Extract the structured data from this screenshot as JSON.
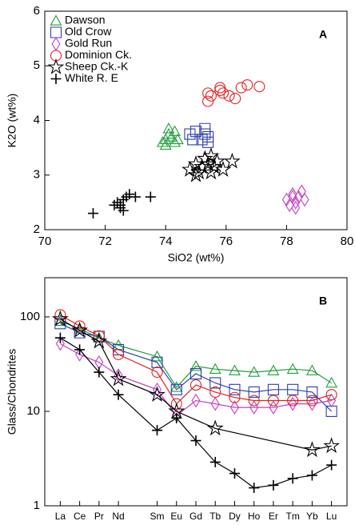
{
  "chart_data": [
    {
      "type": "scatter",
      "label": "A",
      "xlabel": "SiO2 (wt%)",
      "ylabel": "K2O (wt%)",
      "xlim": [
        70,
        80
      ],
      "xticks": [
        70,
        72,
        74,
        76,
        78,
        80
      ],
      "ylim": [
        2,
        6
      ],
      "yticks": [
        2,
        3,
        4,
        5,
        6
      ],
      "legend": "upper-left",
      "series": [
        {
          "name": "Dawson",
          "color": "#1f9e3c",
          "marker": "triangle",
          "x": [
            74.0,
            74.1,
            73.9,
            74.2,
            74.3,
            74.0,
            74.4,
            74.1,
            74.3
          ],
          "values": [
            3.65,
            3.75,
            3.6,
            3.7,
            3.6,
            3.55,
            3.65,
            3.85,
            3.8
          ]
        },
        {
          "name": "Old Crow",
          "color": "#2f3fb0",
          "marker": "square",
          "x": [
            74.8,
            75.0,
            75.3,
            75.4,
            75.2,
            75.4,
            74.9,
            75.3
          ],
          "values": [
            3.75,
            3.8,
            3.75,
            3.7,
            3.65,
            3.6,
            3.65,
            3.85
          ]
        },
        {
          "name": "Gold Run",
          "color": "#c040c0",
          "marker": "diamond",
          "x": [
            78.0,
            78.2,
            78.3,
            78.4,
            78.5,
            78.1,
            78.3,
            78.6,
            78.2
          ],
          "values": [
            2.55,
            2.65,
            2.5,
            2.6,
            2.7,
            2.45,
            2.4,
            2.55,
            2.6
          ]
        },
        {
          "name": "Dominion Ck.",
          "color": "#e02020",
          "marker": "circle",
          "x": [
            75.4,
            75.4,
            75.5,
            75.8,
            75.9,
            76.1,
            76.3,
            76.5,
            76.7,
            77.1,
            75.8
          ],
          "values": [
            4.5,
            4.35,
            4.45,
            4.55,
            4.5,
            4.45,
            4.4,
            4.6,
            4.65,
            4.62,
            4.6
          ]
        },
        {
          "name": "Sheep Ck.-K",
          "color": "#000000",
          "marker": "star",
          "x": [
            74.8,
            75.0,
            75.1,
            75.2,
            75.3,
            75.4,
            75.5,
            75.6,
            75.7,
            75.9,
            76.2,
            75.0,
            75.5
          ],
          "values": [
            3.1,
            3.2,
            3.05,
            3.15,
            3.3,
            3.2,
            3.35,
            3.15,
            3.25,
            3.1,
            3.25,
            3.0,
            3.05
          ]
        },
        {
          "name": "White R. E",
          "color": "#000000",
          "marker": "plus",
          "x": [
            71.6,
            72.3,
            72.4,
            72.5,
            72.6,
            72.7,
            72.8,
            72.6,
            73.0,
            73.5,
            72.5
          ],
          "values": [
            2.3,
            2.45,
            2.5,
            2.4,
            2.55,
            2.6,
            2.65,
            2.35,
            2.6,
            2.6,
            2.45
          ]
        }
      ]
    },
    {
      "type": "line",
      "label": "B",
      "ylabel": "Glass/Chondrites",
      "log_y": true,
      "xlim": [
        56.2,
        71.8
      ],
      "xticks": [
        {
          "value": 57,
          "label": "La"
        },
        {
          "value": 58,
          "label": "Ce"
        },
        {
          "value": 59,
          "label": "Pr"
        },
        {
          "value": 60,
          "label": "Nd"
        },
        {
          "value": 62,
          "label": "Sm"
        },
        {
          "value": 63,
          "label": "Eu"
        },
        {
          "value": 64,
          "label": "Gd"
        },
        {
          "value": 65,
          "label": "Tb"
        },
        {
          "value": 66,
          "label": "Dy"
        },
        {
          "value": 67,
          "label": "Ho"
        },
        {
          "value": 68,
          "label": "Er"
        },
        {
          "value": 69,
          "label": "Tm"
        },
        {
          "value": 70,
          "label": "Yb"
        },
        {
          "value": 71,
          "label": "Lu"
        }
      ],
      "ylim": [
        1,
        260
      ],
      "yticks": [
        1,
        10,
        100
      ],
      "x": [
        57,
        58,
        59,
        60,
        62,
        63,
        64,
        65,
        66,
        67,
        68,
        69,
        70,
        71
      ],
      "series": [
        {
          "color": "#1f9e3c",
          "marker": "triangle",
          "values": [
            90,
            75,
            60,
            50,
            38,
            18,
            30,
            28,
            27,
            26,
            27,
            28,
            27,
            20
          ]
        },
        {
          "color": "#2f3fb0",
          "marker": "square",
          "values": [
            85,
            68,
            62,
            45,
            33,
            17,
            25,
            20,
            17,
            16,
            17,
            17,
            16,
            10
          ]
        },
        {
          "color": "#c040c0",
          "marker": "diamond",
          "values": [
            52,
            40,
            33,
            24,
            17,
            9,
            13,
            12,
            11,
            11,
            11,
            12,
            12,
            13
          ]
        },
        {
          "color": "#e02020",
          "marker": "circle",
          "values": [
            105,
            80,
            63,
            40,
            26,
            12,
            19,
            16,
            14,
            13,
            13,
            13,
            13,
            15
          ]
        },
        {
          "color": "#000000",
          "marker": "star",
          "x": [
            57,
            58,
            59,
            60,
            62,
            63,
            65,
            70,
            71
          ],
          "values": [
            95,
            72,
            55,
            22,
            15,
            10,
            6.6,
            3.9,
            4.3
          ]
        },
        {
          "color": "#000000",
          "marker": "plus",
          "values": [
            60,
            45,
            26,
            15,
            6.3,
            8.5,
            4.9,
            2.9,
            2.2,
            1.55,
            1.65,
            1.95,
            2.1,
            2.7
          ]
        }
      ]
    }
  ]
}
